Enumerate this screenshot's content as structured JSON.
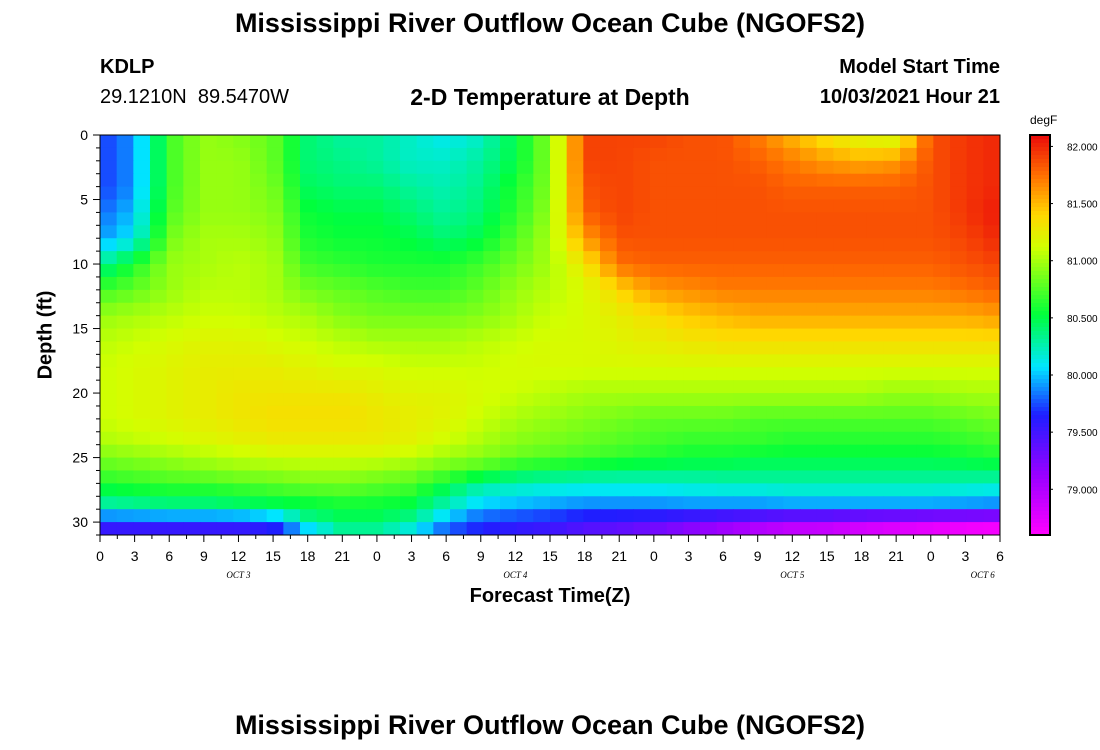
{
  "header": {
    "title": "Mississippi River Outflow Ocean Cube (NGOFS2)",
    "station_id": "KDLP",
    "station_coords": "29.1210N  89.5470W",
    "plot_title": "2-D Temperature at Depth",
    "model_start_label": "Model Start Time",
    "model_start_value": "10/03/2021 Hour 21"
  },
  "footer": {
    "title": "Mississippi River Outflow Ocean Cube (NGOFS2)"
  },
  "chart_data": {
    "type": "heatmap",
    "title": "2-D Temperature at Depth",
    "xlabel": "Forecast Time(Z)",
    "ylabel": "Depth (ft)",
    "x_unit": "hours from Oct 3 00Z",
    "xlim": [
      0,
      78
    ],
    "ylim": [
      31,
      0
    ],
    "x_tick_values": [
      0,
      3,
      6,
      9,
      12,
      15,
      18,
      21,
      24,
      27,
      30,
      33,
      36,
      39,
      42,
      45,
      48,
      51,
      54,
      57,
      60,
      63,
      66,
      69,
      72,
      75,
      78
    ],
    "x_tick_labels": [
      "0",
      "3",
      "6",
      "9",
      "12",
      "15",
      "18",
      "21",
      "0",
      "3",
      "6",
      "9",
      "12",
      "15",
      "18",
      "21",
      "0",
      "3",
      "6",
      "9",
      "12",
      "15",
      "18",
      "21",
      "0",
      "3",
      "6"
    ],
    "y_tick_values": [
      0,
      5,
      10,
      15,
      20,
      25,
      30
    ],
    "y_tick_labels": [
      "0",
      "5",
      "10",
      "15",
      "20",
      "25",
      "30"
    ],
    "date_labels": [
      {
        "text": "OCT 3",
        "x": 12
      },
      {
        "text": "OCT 4",
        "x": 36
      },
      {
        "text": "OCT 5",
        "x": 60
      },
      {
        "text": "OCT 6",
        "x": 76.5
      }
    ],
    "colorbar": {
      "unit": "degF",
      "range": [
        78.6,
        82.1
      ],
      "tick_values": [
        82.0,
        81.5,
        81.0,
        80.5,
        80.0,
        79.5,
        79.0
      ],
      "tick_labels": [
        "82.000",
        "81.500",
        "81.000",
        "80.500",
        "80.000",
        "79.500",
        "79.000"
      ]
    },
    "depths": [
      0,
      2,
      4,
      6,
      8,
      10,
      12,
      14,
      16,
      18,
      20,
      22,
      24,
      25,
      26,
      27,
      28,
      29,
      30,
      31
    ],
    "times": [
      0,
      3,
      6,
      9,
      12,
      15,
      18,
      21,
      24,
      27,
      30,
      33,
      36,
      39,
      42,
      45,
      48,
      51,
      54,
      57,
      60,
      63,
      66,
      69,
      72,
      75,
      78
    ],
    "values": [
      [
        79.7,
        79.9,
        80.7,
        80.95,
        80.9,
        80.8,
        80.4,
        80.3,
        80.3,
        80.2,
        80.1,
        80.2,
        80.5,
        80.9,
        81.9,
        81.9,
        81.9,
        81.85,
        81.85,
        81.7,
        81.5,
        81.3,
        81.15,
        81.1,
        81.85,
        81.95,
        82.0
      ],
      [
        79.7,
        79.9,
        80.7,
        80.95,
        80.95,
        80.8,
        80.4,
        80.35,
        80.3,
        80.2,
        80.2,
        80.3,
        80.5,
        80.9,
        81.9,
        81.9,
        81.85,
        81.85,
        81.85,
        81.8,
        81.7,
        81.6,
        81.55,
        81.6,
        81.85,
        81.95,
        82.0
      ],
      [
        79.7,
        79.9,
        80.7,
        80.95,
        80.95,
        80.85,
        80.45,
        80.4,
        80.4,
        80.3,
        80.25,
        80.35,
        80.6,
        80.9,
        81.85,
        81.9,
        81.85,
        81.85,
        81.85,
        81.85,
        81.8,
        81.8,
        81.8,
        81.8,
        81.85,
        81.95,
        82.0
      ],
      [
        79.8,
        80.0,
        80.75,
        80.95,
        80.95,
        80.9,
        80.55,
        80.5,
        80.5,
        80.4,
        80.3,
        80.4,
        80.65,
        80.95,
        81.8,
        81.9,
        81.85,
        81.85,
        81.85,
        81.85,
        81.85,
        81.85,
        81.85,
        81.85,
        81.85,
        81.95,
        82.05
      ],
      [
        79.9,
        80.1,
        80.85,
        81.0,
        81.0,
        80.95,
        80.6,
        80.55,
        80.55,
        80.5,
        80.4,
        80.5,
        80.75,
        81.0,
        81.6,
        81.85,
        81.85,
        81.85,
        81.85,
        81.85,
        81.85,
        81.85,
        81.85,
        81.85,
        81.85,
        81.9,
        82.0
      ],
      [
        80.3,
        80.6,
        80.95,
        81.0,
        81.05,
        81.0,
        80.7,
        80.65,
        80.6,
        80.6,
        80.6,
        80.7,
        80.85,
        81.0,
        81.3,
        81.75,
        81.8,
        81.8,
        81.8,
        81.8,
        81.8,
        81.8,
        81.8,
        81.8,
        81.8,
        81.85,
        81.9
      ],
      [
        80.7,
        80.8,
        80.95,
        81.05,
        81.05,
        81.0,
        80.85,
        80.8,
        80.75,
        80.7,
        80.7,
        80.8,
        80.95,
        81.05,
        81.15,
        81.4,
        81.6,
        81.65,
        81.7,
        81.7,
        81.7,
        81.7,
        81.7,
        81.7,
        81.7,
        81.75,
        81.8
      ],
      [
        80.95,
        81.0,
        81.05,
        81.1,
        81.1,
        81.05,
        81.0,
        80.9,
        80.85,
        80.85,
        80.85,
        80.9,
        81.0,
        81.1,
        81.15,
        81.25,
        81.35,
        81.45,
        81.5,
        81.55,
        81.55,
        81.55,
        81.55,
        81.55,
        81.55,
        81.55,
        81.6
      ],
      [
        81.05,
        81.1,
        81.15,
        81.2,
        81.2,
        81.15,
        81.1,
        81.05,
        81.0,
        81.0,
        81.0,
        81.05,
        81.1,
        81.15,
        81.15,
        81.2,
        81.25,
        81.3,
        81.35,
        81.35,
        81.35,
        81.35,
        81.35,
        81.35,
        81.35,
        81.35,
        81.35
      ],
      [
        81.1,
        81.15,
        81.2,
        81.25,
        81.25,
        81.25,
        81.2,
        81.15,
        81.15,
        81.1,
        81.1,
        81.1,
        81.15,
        81.15,
        81.15,
        81.15,
        81.15,
        81.15,
        81.15,
        81.15,
        81.15,
        81.15,
        81.15,
        81.15,
        81.15,
        81.15,
        81.15
      ],
      [
        81.1,
        81.15,
        81.2,
        81.25,
        81.3,
        81.3,
        81.3,
        81.3,
        81.25,
        81.2,
        81.2,
        81.15,
        81.1,
        81.05,
        81.0,
        81.0,
        81.0,
        81.0,
        81.0,
        81.0,
        81.0,
        81.0,
        81.0,
        80.95,
        80.95,
        81.0,
        81.0
      ],
      [
        81.1,
        81.15,
        81.2,
        81.25,
        81.3,
        81.35,
        81.35,
        81.35,
        81.3,
        81.25,
        81.2,
        81.1,
        81.0,
        80.95,
        80.9,
        80.85,
        80.8,
        80.8,
        80.8,
        80.75,
        80.75,
        80.75,
        80.75,
        80.75,
        80.75,
        80.8,
        80.85
      ],
      [
        81.0,
        81.05,
        81.1,
        81.15,
        81.2,
        81.25,
        81.25,
        81.25,
        81.25,
        81.2,
        81.1,
        81.0,
        80.9,
        80.85,
        80.8,
        80.75,
        80.7,
        80.65,
        80.65,
        80.65,
        80.6,
        80.6,
        80.6,
        80.6,
        80.6,
        80.65,
        80.7
      ],
      [
        80.85,
        80.9,
        80.95,
        81.0,
        81.05,
        81.1,
        81.1,
        81.1,
        81.1,
        81.05,
        80.95,
        80.9,
        80.8,
        80.75,
        80.7,
        80.65,
        80.6,
        80.55,
        80.55,
        80.5,
        80.5,
        80.5,
        80.5,
        80.5,
        80.5,
        80.55,
        80.6
      ],
      [
        80.75,
        80.8,
        80.85,
        80.9,
        80.95,
        80.95,
        81.0,
        81.0,
        80.95,
        80.9,
        80.8,
        80.7,
        80.55,
        80.5,
        80.45,
        80.4,
        80.4,
        80.4,
        80.4,
        80.4,
        80.4,
        80.4,
        80.4,
        80.4,
        80.4,
        80.4,
        80.4
      ],
      [
        80.6,
        80.65,
        80.7,
        80.7,
        80.75,
        80.8,
        80.85,
        80.85,
        80.8,
        80.75,
        80.55,
        80.3,
        80.25,
        80.2,
        80.2,
        80.2,
        80.2,
        80.2,
        80.25,
        80.25,
        80.25,
        80.25,
        80.25,
        80.25,
        80.25,
        80.25,
        80.25
      ],
      [
        80.4,
        80.45,
        80.5,
        80.5,
        80.55,
        80.6,
        80.65,
        80.7,
        80.65,
        80.6,
        80.35,
        80.15,
        80.1,
        80.05,
        80.0,
        80.0,
        80.0,
        80.05,
        80.05,
        80.05,
        80.1,
        80.1,
        80.1,
        80.1,
        80.1,
        80.05,
        80.0
      ],
      [
        80.2,
        80.25,
        80.3,
        80.3,
        80.35,
        80.4,
        80.45,
        80.5,
        80.5,
        80.45,
        80.2,
        79.95,
        79.9,
        79.85,
        79.8,
        79.8,
        79.8,
        79.8,
        79.8,
        79.8,
        79.8,
        79.8,
        79.8,
        79.8,
        79.8,
        79.8,
        79.8
      ],
      [
        79.6,
        79.6,
        79.6,
        79.6,
        79.6,
        79.7,
        80.3,
        80.45,
        80.45,
        80.3,
        79.9,
        79.7,
        79.65,
        79.6,
        79.5,
        79.45,
        79.4,
        79.3,
        79.2,
        79.1,
        79.0,
        79.0,
        78.9,
        78.85,
        78.8,
        78.75,
        78.7
      ],
      [
        79.5,
        79.5,
        79.5,
        79.5,
        79.5,
        79.55,
        79.8,
        80.2,
        80.2,
        80.0,
        79.7,
        79.6,
        79.5,
        79.45,
        79.35,
        79.3,
        79.2,
        79.1,
        79.0,
        78.9,
        78.85,
        78.8,
        78.75,
        78.7,
        78.65,
        78.6,
        78.6
      ]
    ]
  }
}
